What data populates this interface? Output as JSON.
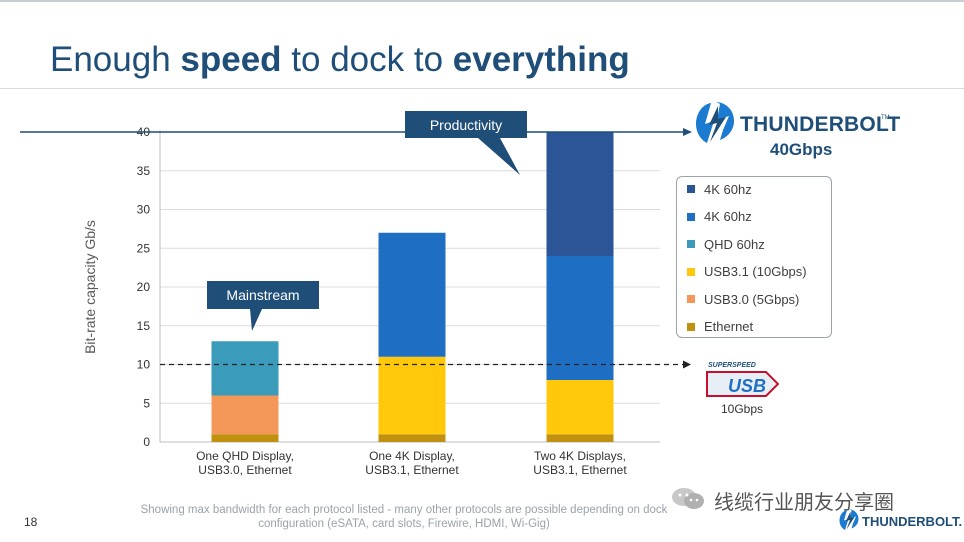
{
  "slide": {
    "title_parts": [
      "Enough ",
      "speed",
      " to dock to ",
      "everything"
    ],
    "page_number": "18",
    "footnote": "Showing max bandwidth for each protocol listed - many other protocols are possible depending on dock configuration (eSATA, card slots, Firewire, HDMI, Wi-Gig)"
  },
  "thunderbolt": {
    "brand": "THUNDERBOLT",
    "tm": "TM",
    "speed": "40Gbps",
    "footer_brand": "THUNDERBOLT."
  },
  "usb": {
    "badge_top": "SUPERSPEED",
    "badge_text": "USB",
    "speed": "10Gbps"
  },
  "watermark": {
    "text": "线缆行业朋友分享圈"
  },
  "colors": {
    "title_blue": "#1f4e79",
    "bar_dark_blue": "#2b5597",
    "bar_blue": "#1e6fc4",
    "bar_teal": "#3a9bba",
    "bar_yellow": "#ffc80a",
    "bar_orange": "#f4985a",
    "bar_gold": "#c0900f",
    "callout": "#1f4e79"
  },
  "chart_data": {
    "type": "bar",
    "stacked": true,
    "ylabel": "Bit-rate capacity Gb/s",
    "ylim": [
      0,
      40
    ],
    "yticks": [
      0,
      5,
      10,
      15,
      20,
      25,
      30,
      35,
      40
    ],
    "grid": true,
    "legend_position": "right",
    "categories": [
      [
        "One QHD Display,",
        "USB3.0, Ethernet"
      ],
      [
        "One 4K Display,",
        "USB3.1, Ethernet"
      ],
      [
        "Two 4K Displays,",
        "USB3.1, Ethernet"
      ]
    ],
    "series": [
      {
        "name": "Ethernet",
        "color": "#c0900f",
        "values": [
          1,
          1,
          1
        ]
      },
      {
        "name": "USB3.0 (5Gbps)",
        "color": "#f4985a",
        "values": [
          5,
          0,
          0
        ]
      },
      {
        "name": "USB3.1 (10Gbps)",
        "color": "#ffc80a",
        "values": [
          0,
          10,
          7
        ]
      },
      {
        "name": "QHD 60hz",
        "color": "#3a9bba",
        "values": [
          7,
          0,
          0
        ]
      },
      {
        "name": "4K 60hz",
        "color": "#1e6fc4",
        "values": [
          0,
          16,
          16
        ]
      },
      {
        "name": "4K 60hz",
        "color": "#2b5597",
        "values": [
          0,
          0,
          16
        ]
      }
    ],
    "legend_order": [
      5,
      4,
      3,
      2,
      1,
      0
    ],
    "reference_lines": [
      {
        "value": 40,
        "style": "solid",
        "label": "Thunderbolt 40Gbps"
      },
      {
        "value": 10,
        "style": "dashed",
        "label": "USB 10Gbps"
      }
    ],
    "annotations": [
      {
        "text": "Mainstream",
        "category_index": 0
      },
      {
        "text": "Productivity",
        "category_index": 2
      }
    ]
  }
}
